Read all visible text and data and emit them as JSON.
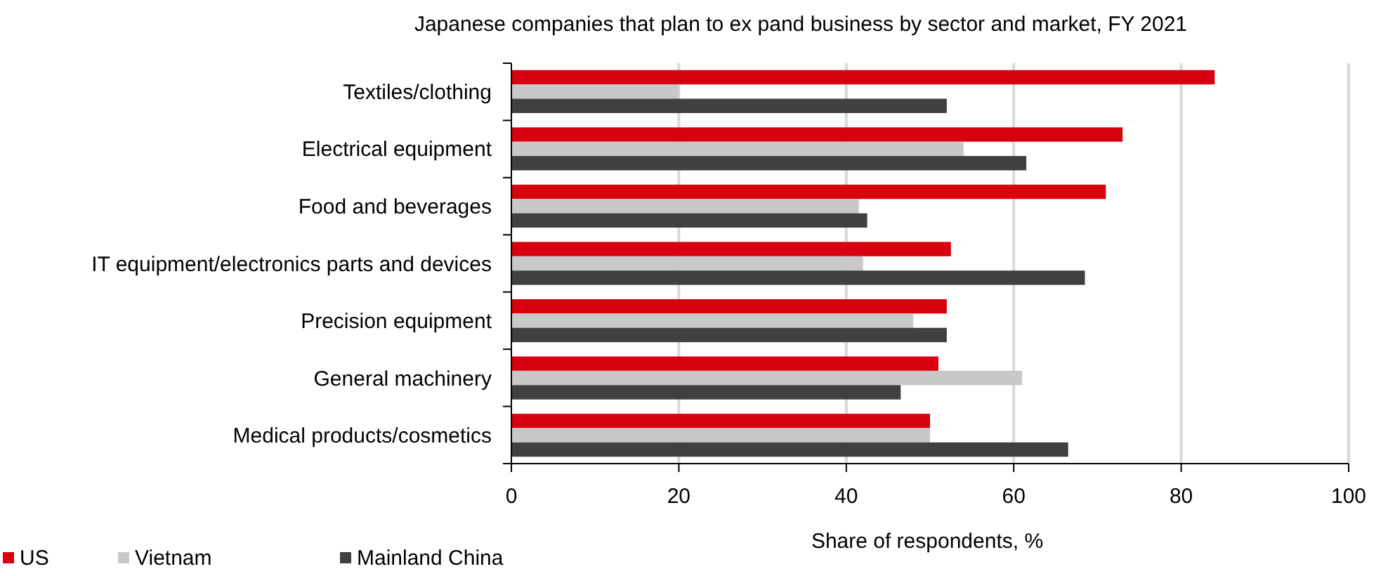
{
  "chart_data": {
    "type": "bar",
    "orientation": "horizontal",
    "title": "Japanese companies that plan to ex pand business by sector and market, FY 2021",
    "xlabel": "Share of respondents, %",
    "categories": [
      "Textiles/clothing",
      "Electrical equipment",
      "Food and beverages",
      "IT equipment/electronics parts and devices",
      "Precision equipment",
      "General machinery",
      "Medical products/cosmetics"
    ],
    "series": [
      {
        "name": "US",
        "color": "#d7000f",
        "values": [
          84,
          73,
          71,
          52.5,
          52,
          51,
          50
        ]
      },
      {
        "name": "Vietnam",
        "color": "#c8c8c8",
        "values": [
          20,
          54,
          41.5,
          42,
          48,
          61,
          50
        ]
      },
      {
        "name": "Mainland China",
        "color": "#404040",
        "values": [
          52,
          61.5,
          42.5,
          68.5,
          52,
          46.5,
          66.5
        ]
      }
    ],
    "xlim": [
      0,
      100
    ],
    "xticks": [
      0,
      20,
      40,
      60,
      80,
      100
    ],
    "grid": "x",
    "legend": "bottom left"
  }
}
